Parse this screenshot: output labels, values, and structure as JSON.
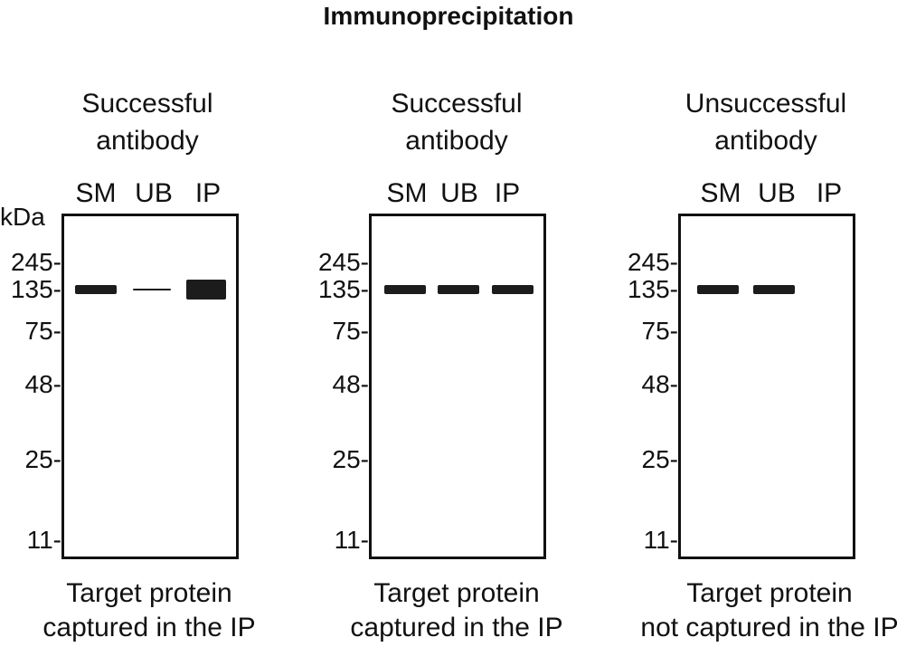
{
  "title": "Immunoprecipitation",
  "axis_unit": "kDa",
  "panels": [
    {
      "heading_line1": "Successful",
      "heading_line2": "antibody",
      "lanes": [
        "SM",
        "UB",
        "IP"
      ],
      "markers": [
        "245-",
        "135-",
        "75-",
        "48-",
        "25-",
        "11-"
      ],
      "bands": [
        {
          "lane": "SM",
          "kda": 135,
          "intensity": "medium"
        },
        {
          "lane": "UB",
          "kda": 135,
          "intensity": "faint"
        },
        {
          "lane": "IP",
          "kda": 135,
          "intensity": "strong"
        }
      ],
      "caption_line1": "Target protein",
      "caption_line2": "captured in the IP"
    },
    {
      "heading_line1": "Successful",
      "heading_line2": "antibody",
      "lanes": [
        "SM",
        "UB",
        "IP"
      ],
      "markers": [
        "245-",
        "135-",
        "75-",
        "48-",
        "25-",
        "11-"
      ],
      "bands": [
        {
          "lane": "SM",
          "kda": 135,
          "intensity": "medium"
        },
        {
          "lane": "UB",
          "kda": 135,
          "intensity": "medium"
        },
        {
          "lane": "IP",
          "kda": 135,
          "intensity": "medium"
        }
      ],
      "caption_line1": "Target protein",
      "caption_line2": "captured in the IP"
    },
    {
      "heading_line1": "Unsuccessful",
      "heading_line2": "antibody",
      "lanes": [
        "SM",
        "UB",
        "IP"
      ],
      "markers": [
        "245-",
        "135-",
        "75-",
        "48-",
        "25-",
        "11-"
      ],
      "bands": [
        {
          "lane": "SM",
          "kda": 135,
          "intensity": "medium"
        },
        {
          "lane": "UB",
          "kda": 135,
          "intensity": "medium"
        }
      ],
      "caption_line1": "Target protein",
      "caption_line2": "not captured in the IP"
    }
  ],
  "colors": {
    "band": "#1c1c1c",
    "frame": "#111111"
  }
}
